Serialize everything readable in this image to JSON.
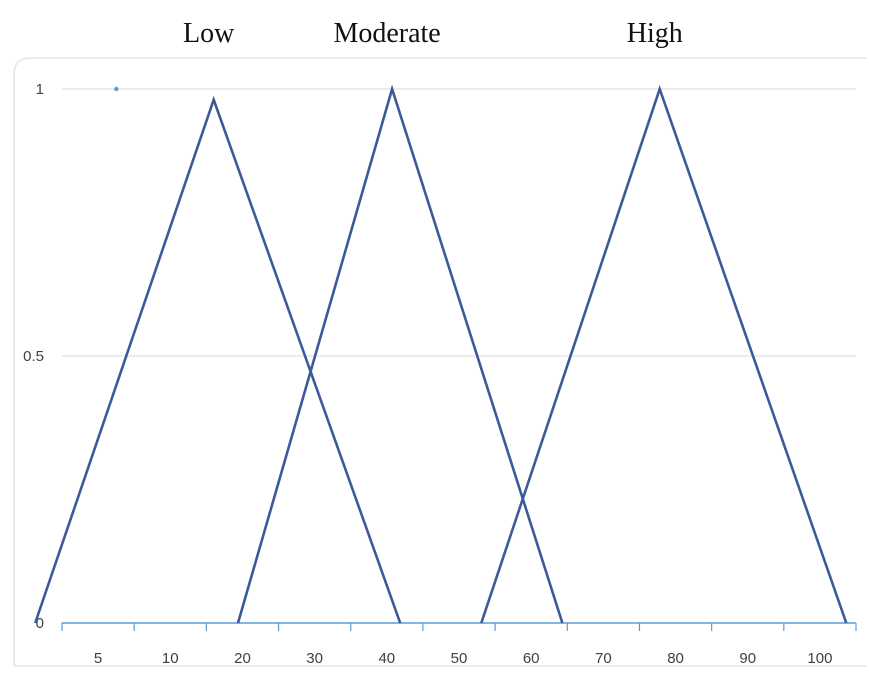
{
  "chart_data": {
    "type": "line",
    "title": "",
    "xlabel": "",
    "ylabel": "",
    "x_ticks": [
      "5",
      "10",
      "20",
      "30",
      "40",
      "50",
      "60",
      "70",
      "80",
      "90",
      "100"
    ],
    "y_ticks": [
      "0",
      "0.5",
      "1"
    ],
    "ylim": [
      0,
      1
    ],
    "grid": true,
    "line_color": "#3c5a9a",
    "marker_color": "#5b9bd5",
    "marker_point": {
      "x": 10,
      "y": 1
    },
    "series": [
      {
        "name": "Low",
        "points": [
          {
            "x": 0,
            "y": 0
          },
          {
            "x": 22,
            "y": 0.98
          },
          {
            "x": 45,
            "y": 0
          }
        ]
      },
      {
        "name": "Moderate",
        "points": [
          {
            "x": 25,
            "y": 0
          },
          {
            "x": 44,
            "y": 1
          },
          {
            "x": 65,
            "y": 0
          }
        ]
      },
      {
        "name": "High",
        "points": [
          {
            "x": 55,
            "y": 0
          },
          {
            "x": 77,
            "y": 1
          },
          {
            "x": 100,
            "y": 0
          }
        ]
      }
    ]
  }
}
